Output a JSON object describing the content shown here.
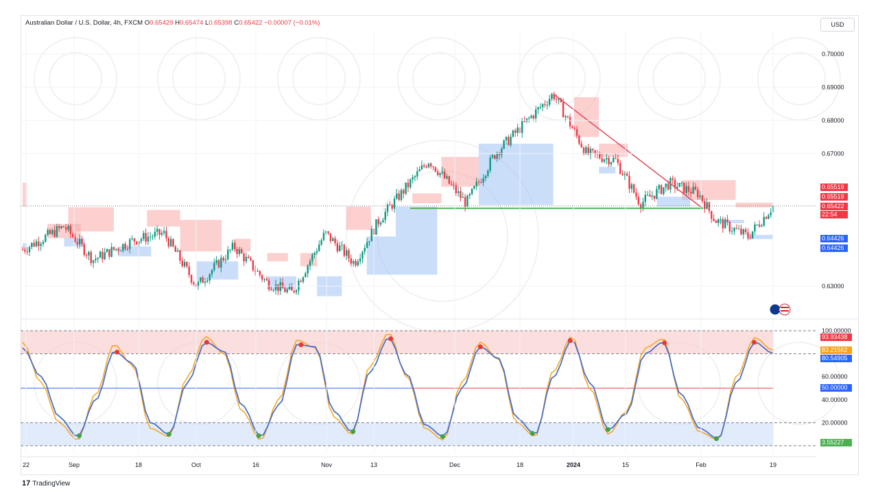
{
  "header": {
    "symbol": "Australian Dollar / U.S. Dollar, 4h, FXCM",
    "open_label": "O",
    "open": "0.65429",
    "high_label": "H",
    "high": "0.65474",
    "low_label": "L",
    "low": "0.65398",
    "close_label": "C",
    "close": "0.65422",
    "change": "−0.00007 (−0.01%)"
  },
  "currency": "USD",
  "price_axis": [
    "0.70000",
    "0.69000",
    "0.68000",
    "0.67000",
    "0.63000"
  ],
  "price_tags": {
    "tag1": "0.65519",
    "tag2": "0.65519",
    "tag3": "0.65422",
    "countdown": "22:54",
    "tag5": "0.64426",
    "tag6": "0.64426"
  },
  "osc_axis": [
    "100.00000",
    "60.00000",
    "40.00000",
    "20.00000"
  ],
  "osc_tags": {
    "t1": "93.93438",
    "t2": "83.21562",
    "t3": "80.54905",
    "t4": "50.00000",
    "t5": "3.55227"
  },
  "time_axis": [
    "22",
    "Sep",
    "18",
    "Oct",
    "16",
    "Nov",
    "13",
    "Dec",
    "18",
    "2024",
    "15",
    "Feb",
    "19"
  ],
  "footer": {
    "brand": "TradingView"
  },
  "colors": {
    "up": "#089981",
    "down": "#f23645",
    "supply": "#f7a9a8",
    "demand": "#9fc2f5",
    "trendline": "#e0465a",
    "support": "#4caf50",
    "osc_fast": "#f7a21b",
    "osc_slow": "#4a6fc4"
  },
  "chart_data": [
    {
      "type": "candlestick",
      "title": "Australian Dollar / U.S. Dollar, 4h, FXCM",
      "ylim": [
        0.625,
        0.704
      ],
      "x_labels": [
        "22",
        "Sep",
        "18",
        "Oct",
        "16",
        "Nov",
        "13",
        "Dec",
        "18",
        "2024",
        "15",
        "Feb",
        "19"
      ],
      "key_points": [
        {
          "date": "Aug 22",
          "price": 0.641
        },
        {
          "date": "Sep 1",
          "price": 0.648
        },
        {
          "date": "Sep 8",
          "price": 0.638
        },
        {
          "date": "Sep 18",
          "price": 0.644
        },
        {
          "date": "Sep 25",
          "price": 0.646
        },
        {
          "date": "Oct 3",
          "price": 0.63
        },
        {
          "date": "Oct 12",
          "price": 0.642
        },
        {
          "date": "Oct 20",
          "price": 0.631
        },
        {
          "date": "Oct 26",
          "price": 0.628
        },
        {
          "date": "Nov 3",
          "price": 0.646
        },
        {
          "date": "Nov 10",
          "price": 0.637
        },
        {
          "date": "Nov 16",
          "price": 0.65
        },
        {
          "date": "Nov 28",
          "price": 0.668
        },
        {
          "date": "Dec 7",
          "price": 0.655
        },
        {
          "date": "Dec 14",
          "price": 0.67
        },
        {
          "date": "Dec 28",
          "price": 0.688
        },
        {
          "date": "Jan 5",
          "price": 0.67
        },
        {
          "date": "Jan 12",
          "price": 0.668
        },
        {
          "date": "Jan 18",
          "price": 0.655
        },
        {
          "date": "Jan 25",
          "price": 0.661
        },
        {
          "date": "Feb 1",
          "price": 0.658
        },
        {
          "date": "Feb 5",
          "price": 0.65
        },
        {
          "date": "Feb 13",
          "price": 0.645
        },
        {
          "date": "Feb 19",
          "price": 0.6542
        }
      ],
      "last": {
        "open": 0.65429,
        "high": 0.65474,
        "low": 0.65398,
        "close": 0.65422
      },
      "levels": {
        "resistance": 0.65519,
        "support": 0.64426,
        "horizontal_support": 0.6535
      },
      "trendline": [
        {
          "date": "Dec 28",
          "price": 0.688
        },
        {
          "date": "Feb 2",
          "price": 0.6535
        }
      ]
    },
    {
      "type": "line",
      "title": "",
      "ylim": [
        0,
        100
      ],
      "levels": [
        100,
        80,
        50,
        20,
        0
      ],
      "series": [
        {
          "values": [
            90,
            55,
            20,
            5,
            45,
            88,
            70,
            15,
            8,
            60,
            95,
            80,
            30,
            5,
            40,
            92,
            85,
            25,
            10,
            70,
            98,
            60,
            15,
            5,
            55,
            90,
            75,
            20,
            8,
            65,
            95,
            50,
            10,
            30,
            85,
            93,
            40,
            12,
            5,
            60,
            94,
            83
          ]
        },
        {
          "values": [
            85,
            60,
            25,
            8,
            40,
            82,
            72,
            20,
            10,
            55,
            90,
            82,
            35,
            8,
            35,
            88,
            86,
            30,
            12,
            65,
            94,
            62,
            18,
            8,
            50,
            86,
            76,
            24,
            10,
            60,
            92,
            55,
            14,
            28,
            80,
            90,
            44,
            15,
            6,
            55,
            90,
            80.5
          ]
        }
      ],
      "last": {
        "fast": 83.21562,
        "slow": 80.54905,
        "max": 93.93438,
        "min": 3.55227
      }
    }
  ]
}
